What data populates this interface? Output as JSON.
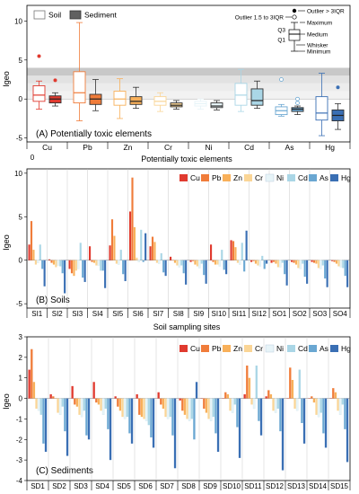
{
  "elements": [
    "Cu",
    "Pb",
    "Zn",
    "Cr",
    "Ni",
    "Cd",
    "As",
    "Hg"
  ],
  "colors": {
    "Cu": "#e03a2f",
    "Pb": "#f07c3a",
    "Zn": "#f8b05a",
    "Cr": "#fad596",
    "Ni": "#e7f4f8",
    "Cd": "#aad6e6",
    "As": "#6aa7d2",
    "Hg": "#3a6fb4"
  },
  "box_colors": {
    "soil": "#ffffff",
    "sediment": "#606060"
  },
  "chart_data": [
    {
      "type": "box",
      "title": "(A) Potentially toxic elements",
      "xlabel": "Potentially toxic elements",
      "ylabel": "Igeo",
      "ylim": [
        -5.5,
        12
      ],
      "yticks": [
        -5,
        0,
        5,
        10
      ],
      "xtick_extra": "0",
      "legend": {
        "soil": "Soil",
        "sediment": "Sediment"
      },
      "key": {
        "outlier_far": "Outlier > 3IQR",
        "outlier_near": "Outlier 1.5 to 3IQR",
        "maximum": "Maximum",
        "q3": "Q3",
        "median": "Medium",
        "q1": "Q1",
        "whisker": "Whisker",
        "minimum": "Minimum"
      },
      "bands": [
        [
          2,
          3
        ],
        [
          3,
          4
        ]
      ],
      "groups": [
        {
          "element": "Cu",
          "soil": {
            "min": -1.3,
            "q1": -0.3,
            "median": 0.5,
            "q3": 1.7,
            "max": 2.3,
            "outliers_far": [
              5.5
            ],
            "outliers_near": []
          },
          "sediment": {
            "min": -0.9,
            "q1": -0.5,
            "median": 0.0,
            "q3": 0.4,
            "max": 0.8,
            "outliers_far": [
              2.4
            ],
            "outliers_near": []
          }
        },
        {
          "element": "Pb",
          "soil": {
            "min": -2.8,
            "q1": -0.5,
            "median": 0.8,
            "q3": 3.5,
            "max": 9.8,
            "outliers_far": [],
            "outliers_near": []
          },
          "sediment": {
            "min": -1.5,
            "q1": -0.7,
            "median": 0.0,
            "q3": 0.6,
            "max": 2.5,
            "outliers_far": [],
            "outliers_near": []
          }
        },
        {
          "element": "Zn",
          "soil": {
            "min": -2.5,
            "q1": -0.8,
            "median": 0.0,
            "q3": 1.0,
            "max": 2.6,
            "outliers_far": [],
            "outliers_near": []
          },
          "sediment": {
            "min": -1.2,
            "q1": -0.7,
            "median": -0.3,
            "q3": 0.3,
            "max": 1.5,
            "outliers_far": [],
            "outliers_near": []
          }
        },
        {
          "element": "Cr",
          "soil": {
            "min": -1.6,
            "q1": -0.8,
            "median": -0.3,
            "q3": 0.3,
            "max": 0.8,
            "outliers_far": [],
            "outliers_near": []
          },
          "sediment": {
            "min": -1.3,
            "q1": -1.0,
            "median": -0.8,
            "q3": -0.5,
            "max": -0.2,
            "outliers_far": [],
            "outliers_near": []
          }
        },
        {
          "element": "Ni",
          "soil": {
            "min": -1.3,
            "q1": -0.9,
            "median": -0.6,
            "q3": -0.3,
            "max": 0.0,
            "outliers_far": [],
            "outliers_near": []
          },
          "sediment": {
            "min": -1.4,
            "q1": -1.1,
            "median": -0.9,
            "q3": -0.5,
            "max": -0.2,
            "outliers_far": [],
            "outliers_near": []
          }
        },
        {
          "element": "Cd",
          "soil": {
            "min": -1.6,
            "q1": -0.8,
            "median": 0.5,
            "q3": 2.0,
            "max": 3.8,
            "outliers_far": [],
            "outliers_near": []
          },
          "sediment": {
            "min": -1.2,
            "q1": -0.8,
            "median": -0.2,
            "q3": 1.3,
            "max": 2.3,
            "outliers_far": [],
            "outliers_near": []
          }
        },
        {
          "element": "As",
          "soil": {
            "min": -2.2,
            "q1": -2.0,
            "median": -1.5,
            "q3": -1.0,
            "max": -0.7,
            "outliers_far": [],
            "outliers_near": [
              2.5
            ]
          },
          "sediment": {
            "min": -2.0,
            "q1": -1.6,
            "median": -1.3,
            "q3": -1.1,
            "max": -0.9,
            "outliers_far": [],
            "outliers_near": [
              0.0,
              -0.5
            ]
          }
        },
        {
          "element": "Hg",
          "soil": {
            "min": -4.7,
            "q1": -2.7,
            "median": -1.8,
            "q3": 0.3,
            "max": 3.3,
            "outliers_far": [],
            "outliers_near": []
          },
          "sediment": {
            "min": -3.9,
            "q1": -2.8,
            "median": -2.1,
            "q3": -1.4,
            "max": -0.6,
            "outliers_far": [
              1.5
            ],
            "outliers_near": []
          }
        }
      ]
    },
    {
      "type": "bar",
      "title": "(B) Soils",
      "xlabel": "Soil sampling sites",
      "ylabel": "Igeo",
      "ylim": [
        -5.5,
        10.5
      ],
      "yticks": [
        -5,
        0,
        5,
        10
      ],
      "categories": [
        "SI1",
        "SI2",
        "SI3",
        "SI4",
        "SI5",
        "SI6",
        "SI7",
        "SI8",
        "SI9",
        "SI10",
        "SI11",
        "SI12",
        "SO1",
        "SO2",
        "SO3",
        "SO4"
      ],
      "series": [
        {
          "name": "Cu",
          "values": [
            1.8,
            0.1,
            -1.0,
            1.6,
            1.7,
            5.6,
            1.6,
            0.4,
            -0.2,
            1.8,
            2.3,
            -0.2,
            -0.3,
            -0.2,
            -0.2,
            -0.1
          ]
        },
        {
          "name": "Pb",
          "values": [
            4.5,
            -0.3,
            -1.5,
            -0.2,
            4.7,
            9.5,
            2.7,
            0.0,
            -0.1,
            -0.2,
            2.2,
            -0.1,
            -0.2,
            -0.3,
            -0.3,
            -0.2
          ]
        },
        {
          "name": "Zn",
          "values": [
            1.2,
            -0.5,
            -1.8,
            -0.3,
            2.8,
            3.8,
            2.1,
            -0.3,
            -0.5,
            -0.5,
            1.5,
            -0.4,
            -0.4,
            -0.5,
            -0.4,
            -0.4
          ]
        },
        {
          "name": "Cr",
          "values": [
            -0.5,
            -0.8,
            -1.2,
            -0.6,
            -0.4,
            0.3,
            -0.3,
            -0.6,
            -0.7,
            -0.5,
            -0.3,
            -0.6,
            -0.8,
            -0.9,
            -0.9,
            -0.7
          ]
        },
        {
          "name": "Ni",
          "values": [
            -0.3,
            -0.6,
            -1.0,
            -0.6,
            -0.5,
            -0.2,
            -0.4,
            -0.8,
            -0.9,
            -0.7,
            -0.5,
            -0.7,
            -0.8,
            -1.0,
            -1.0,
            -0.8
          ]
        },
        {
          "name": "Cd",
          "values": [
            1.8,
            -0.7,
            2.0,
            -1.2,
            1.2,
            3.5,
            0.8,
            -0.6,
            -0.4,
            1.2,
            2.0,
            0.5,
            -0.3,
            -0.4,
            -0.6,
            -0.9
          ]
        },
        {
          "name": "As",
          "values": [
            -1.0,
            -1.5,
            -2.0,
            -1.2,
            -1.6,
            -0.2,
            -1.4,
            -1.5,
            -1.7,
            -1.1,
            -1.3,
            -1.0,
            -1.6,
            -1.9,
            -2.1,
            -1.8
          ]
        },
        {
          "name": "Hg",
          "values": [
            -3.0,
            -3.8,
            -2.5,
            -3.2,
            -2.4,
            3.1,
            -1.8,
            -2.8,
            -2.7,
            -1.6,
            3.4,
            -0.4,
            -2.9,
            -2.7,
            -3.1,
            -3.1
          ]
        }
      ]
    },
    {
      "type": "bar",
      "title": "(C) Sediments",
      "xlabel": "",
      "ylabel": "Igeo",
      "ylim": [
        -4,
        3
      ],
      "yticks": [
        -4,
        -3,
        -2,
        -1,
        0,
        1,
        2,
        3
      ],
      "categories": [
        "SD1",
        "SD2",
        "SD3",
        "SD4",
        "SD5",
        "SD6",
        "SD7",
        "SD8",
        "SD9",
        "SD10",
        "SD11",
        "SD12",
        "SD13",
        "SD14",
        "SD15"
      ],
      "series": [
        {
          "name": "Cu",
          "values": [
            1.4,
            0.2,
            0.6,
            0.8,
            0.1,
            0.2,
            0.3,
            -0.1,
            0.0,
            0.0,
            0.2,
            0.1,
            0.0,
            0.0,
            0.0
          ]
        },
        {
          "name": "Pb",
          "values": [
            2.4,
            0.1,
            -0.3,
            -0.2,
            -0.4,
            -0.8,
            -0.3,
            -0.6,
            -0.5,
            0.3,
            1.6,
            0.4,
            1.5,
            0.1,
            0.5
          ]
        },
        {
          "name": "Zn",
          "values": [
            0.8,
            0.0,
            -0.4,
            -0.3,
            -0.6,
            -0.9,
            -0.5,
            -0.8,
            -0.7,
            0.2,
            1.0,
            0.2,
            0.9,
            -0.2,
            0.3
          ]
        },
        {
          "name": "Cr",
          "values": [
            -0.5,
            -0.7,
            -0.8,
            -0.6,
            -0.9,
            -1.0,
            -0.9,
            -1.0,
            -1.0,
            -0.6,
            -0.3,
            -0.6,
            -0.5,
            -0.8,
            -0.6
          ]
        },
        {
          "name": "Ni",
          "values": [
            -0.6,
            -0.8,
            -0.9,
            -0.8,
            -1.0,
            -1.1,
            -1.0,
            -1.1,
            -1.1,
            -0.7,
            -0.5,
            -0.7,
            -0.6,
            -0.9,
            -0.8
          ]
        },
        {
          "name": "Cd",
          "values": [
            -0.8,
            -0.4,
            -0.6,
            -0.5,
            -0.9,
            -1.3,
            -0.9,
            -1.0,
            -0.9,
            -0.3,
            1.6,
            -0.5,
            1.4,
            -0.7,
            -0.3
          ]
        },
        {
          "name": "As",
          "values": [
            -2.2,
            -1.6,
            -1.8,
            -1.5,
            -1.7,
            -1.9,
            -1.8,
            -2.0,
            -1.7,
            -1.4,
            -1.1,
            -1.6,
            -1.2,
            -1.7,
            -1.5
          ]
        },
        {
          "name": "Hg",
          "values": [
            -2.6,
            -2.8,
            -2.0,
            -3.0,
            -2.2,
            -2.4,
            -3.4,
            0.8,
            -2.6,
            -2.9,
            -1.8,
            -3.5,
            -2.2,
            -2.4,
            -3.1
          ]
        }
      ]
    }
  ]
}
